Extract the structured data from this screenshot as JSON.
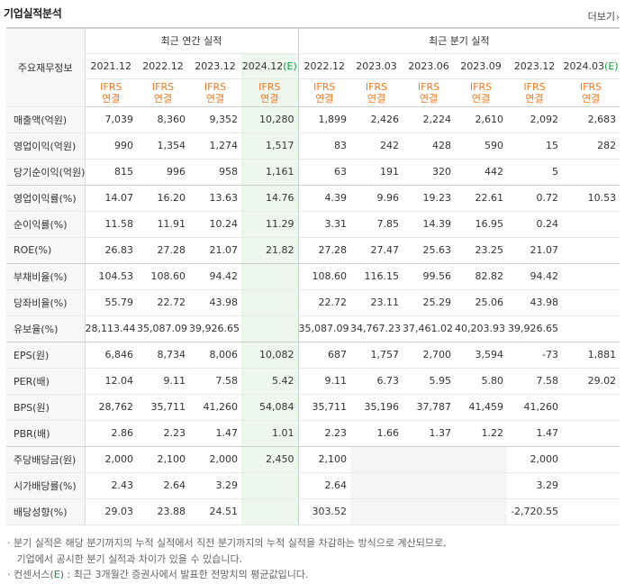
{
  "header": {
    "title": "기업실적분석",
    "more_label": "더보기",
    "more_arrow": "›"
  },
  "table": {
    "corner_label": "주요재무정보",
    "groups": {
      "annual": "최근 연간 실적",
      "quarterly": "최근 분기 실적"
    },
    "periods": [
      "2021.12",
      "2022.12",
      "2023.12",
      "2024.12",
      "2022.12",
      "2023.03",
      "2023.06",
      "2023.09",
      "2023.12",
      "2024.03"
    ],
    "estimate_mark": "(E)",
    "ifrs": "IFRS",
    "basis": "연결",
    "rows": [
      {
        "label": "매출액(억원)",
        "values": [
          "7,039",
          "8,360",
          "9,352",
          "10,280",
          "1,899",
          "2,426",
          "2,224",
          "2,610",
          "2,092",
          "2,683"
        ]
      },
      {
        "label": "영업이익(억원)",
        "values": [
          "990",
          "1,354",
          "1,274",
          "1,517",
          "83",
          "242",
          "428",
          "590",
          "15",
          "282"
        ]
      },
      {
        "label": "당기순이익(억원)",
        "values": [
          "815",
          "996",
          "958",
          "1,161",
          "63",
          "191",
          "320",
          "442",
          "5",
          ""
        ]
      },
      {
        "label": "영업이익률(%)",
        "values": [
          "14.07",
          "16.20",
          "13.63",
          "14.76",
          "4.39",
          "9.96",
          "19.23",
          "22.61",
          "0.72",
          "10.53"
        ]
      },
      {
        "label": "순이익률(%)",
        "values": [
          "11.58",
          "11.91",
          "10.24",
          "11.29",
          "3.31",
          "7.85",
          "14.39",
          "16.95",
          "0.24",
          ""
        ]
      },
      {
        "label": "ROE(%)",
        "values": [
          "26.83",
          "27.28",
          "21.07",
          "21.82",
          "27.28",
          "27.47",
          "25.63",
          "23.25",
          "21.07",
          ""
        ]
      },
      {
        "label": "부채비율(%)",
        "values": [
          "104.53",
          "108.60",
          "94.42",
          "",
          "108.60",
          "116.15",
          "99.56",
          "82.82",
          "94.42",
          ""
        ]
      },
      {
        "label": "당좌비율(%)",
        "values": [
          "55.79",
          "22.72",
          "43.98",
          "",
          "22.72",
          "23.11",
          "25.29",
          "25.06",
          "43.98",
          ""
        ]
      },
      {
        "label": "유보율(%)",
        "values": [
          "28,113.44",
          "35,087.09",
          "39,926.65",
          "",
          "35,087.09",
          "34,767.23",
          "37,461.02",
          "40,203.93",
          "39,926.65",
          ""
        ]
      },
      {
        "label": "EPS(원)",
        "values": [
          "6,846",
          "8,734",
          "8,006",
          "10,082",
          "687",
          "1,757",
          "2,700",
          "3,594",
          "-73",
          "1,881"
        ]
      },
      {
        "label": "PER(배)",
        "values": [
          "12.04",
          "9.11",
          "7.58",
          "5.42",
          "9.11",
          "6.73",
          "5.95",
          "5.80",
          "7.58",
          "29.02"
        ]
      },
      {
        "label": "BPS(원)",
        "values": [
          "28,762",
          "35,711",
          "41,260",
          "54,084",
          "35,711",
          "35,196",
          "37,787",
          "41,459",
          "41,260",
          ""
        ]
      },
      {
        "label": "PBR(배)",
        "values": [
          "2.86",
          "2.23",
          "1.47",
          "1.01",
          "2.23",
          "1.66",
          "1.37",
          "1.22",
          "1.47",
          ""
        ]
      },
      {
        "label": "주당배당금(원)",
        "values": [
          "2,000",
          "2,100",
          "2,000",
          "2,450",
          "2,100",
          "",
          "",
          "",
          "2,000",
          ""
        ]
      },
      {
        "label": "시가배당률(%)",
        "values": [
          "2.43",
          "2.64",
          "3.29",
          "",
          "2.64",
          "",
          "",
          "",
          "3.29",
          ""
        ]
      },
      {
        "label": "배당성향(%)",
        "values": [
          "29.03",
          "23.88",
          "24.51",
          "",
          "303.52",
          "",
          "",
          "",
          "-2,720.55",
          ""
        ]
      }
    ]
  },
  "notes": {
    "line1": "· 분기 실적은 해당 분기까지의 누적 실적에서 직전 분기까지의 누적 실적을 차감하는 방식으로 계산되므로,",
    "line2": "  기업에서 공시한 분기 실적과 차이가 있을 수 있습니다.",
    "line3_prefix": "· 컨센서스(",
    "line3_mark": "E",
    "line3_suffix": ") : 최근 3개월간 증권사에서 발표한 전망치의 평균값입니다."
  },
  "colors": {
    "ifrs": "#f47920",
    "estimate": "#0e9e3e",
    "negative": "#e0210b",
    "estimate_bg": "#eef7ee"
  }
}
